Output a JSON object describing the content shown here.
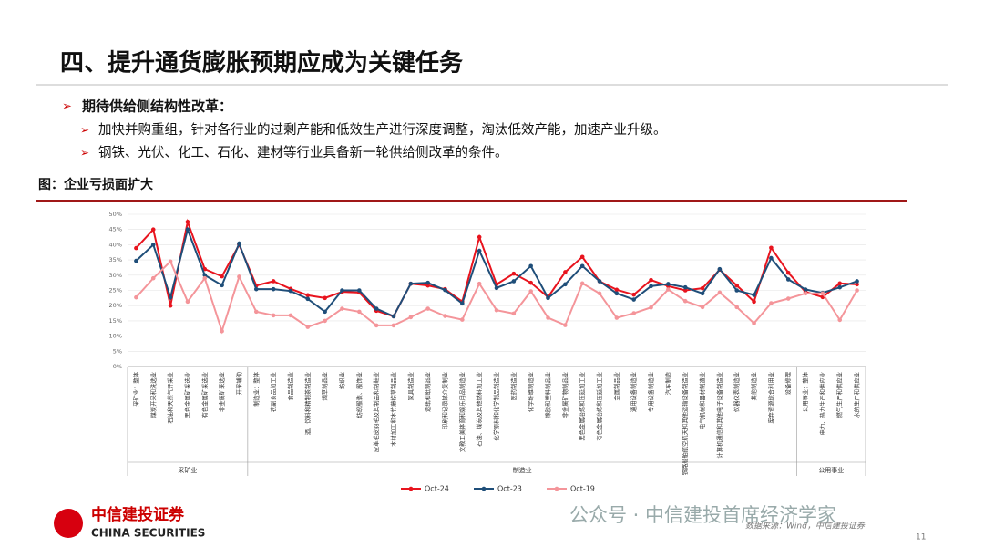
{
  "slide": {
    "title": "四、提升通货膨胀预期应成为关键任务",
    "bullet": "期待供给侧结构性改革：",
    "sub_bullets": [
      "加快并购重组，针对各行业的过剩产能和低效生产进行深度调整，淘汰低效产能，加速产业升级。",
      "钢铁、光伏、化工、石化、建材等行业具备新一轮供给侧改革的条件。"
    ],
    "figure_caption": "图：企业亏损面扩大",
    "source": "数据来源：Wind，中信建投证券",
    "page_number": "11",
    "logo_cn": "中信建投证券",
    "logo_en": "CHINA SECURITIES",
    "watermark": "公众号 · 中信建投首席经济学家"
  },
  "chart_data": {
    "type": "line",
    "categories": [
      "采矿业：整体",
      "煤炭开采和洗选业",
      "石油和天然气开采业",
      "黑色金属矿采选业",
      "有色金属矿采选业",
      "非金属矿采选业",
      "开采辅助",
      "制造业：整体",
      "农副食品加工业",
      "食品制造业",
      "酒、饮料和精制茶制造业",
      "烟草制品业",
      "纺织业",
      "纺织服装、服饰业",
      "皮革毛皮羽毛及其制品和制鞋业",
      "木材加工和木竹藤棕草制品业",
      "家具制造业",
      "造纸和纸制品业",
      "印刷和记录媒介复制业",
      "文教工美体育和娱乐用品制造业",
      "石油、煤炭及其他燃料加工业",
      "化学原料和化学制品制造业",
      "医药制造业",
      "化学纤维制造业",
      "橡胶和塑料制品业",
      "非金属矿物制品业",
      "黑色金属冶炼和压延加工业",
      "有色金属冶炼和压延加工业",
      "金属制品业",
      "通用设备制造业",
      "专用设备制造业",
      "汽车制造",
      "铁路船舶航空航天和其他运输设备制造业",
      "电气机械和器材制造业",
      "计算机通信和其他电子设备制造业",
      "仪器仪表制造业",
      "其他制造业",
      "废弃资源综合利用业",
      "设备修理",
      "公用事业：整体",
      "电力、热力生产和供应业",
      "燃气生产和供应业",
      "水的生产和供应业"
    ],
    "groups": [
      {
        "name": "采矿业",
        "size": 7
      },
      {
        "name": "制造业",
        "size": 32
      },
      {
        "name": "公用事业",
        "size": 4
      }
    ],
    "series": [
      {
        "name": "Oct-24",
        "color": "#e8141e",
        "values": [
          38.9,
          45,
          20,
          47.5,
          32,
          29.6,
          40,
          26.6,
          28,
          25.5,
          23.4,
          22.5,
          24.5,
          24.3,
          18.3,
          16.5,
          27.2,
          26.6,
          25.4,
          21.3,
          42.5,
          27,
          30.5,
          27.5,
          22.8,
          31,
          36,
          28,
          25.2,
          23.6,
          28.4,
          26.4,
          25,
          25.7,
          31.8,
          26.6,
          21.3,
          39,
          30.8,
          24.5,
          22.8,
          27.3,
          27
        ]
      },
      {
        "name": "Oct-23",
        "color": "#1f4e79",
        "values": [
          34.7,
          40,
          22.7,
          45,
          30,
          26.7,
          40.4,
          25.4,
          25.4,
          24.8,
          22.2,
          18,
          25,
          25,
          19,
          16.5,
          27.2,
          27.5,
          25.1,
          20.7,
          38,
          25.8,
          28,
          33,
          22.5,
          27,
          33,
          28,
          24,
          22,
          26.4,
          27.1,
          26,
          24,
          32,
          25,
          23.5,
          35.6,
          28.6,
          25.3,
          24.2,
          26,
          28
        ]
      },
      {
        "name": "Oct-19",
        "color": "#f4959a",
        "values": [
          22.7,
          29,
          34.5,
          21.3,
          29,
          11.6,
          29.5,
          18,
          16.8,
          16.8,
          13,
          15,
          19,
          18,
          13.5,
          13.5,
          16.2,
          19,
          16.6,
          15.4,
          27.2,
          18.5,
          17.4,
          24.7,
          16,
          13.6,
          27.3,
          24,
          16,
          17.5,
          19.4,
          25.3,
          21.5,
          19.5,
          24.3,
          19.5,
          14.2,
          20.8,
          22.3,
          24,
          24,
          15.3,
          25
        ]
      }
    ],
    "ylim": [
      0,
      50
    ],
    "yticks": [
      {
        "value": 0,
        "label": "0%"
      },
      {
        "value": 5,
        "label": "5%"
      },
      {
        "value": 10,
        "label": "10%"
      },
      {
        "value": 15,
        "label": "15%"
      },
      {
        "value": 20,
        "label": "20%"
      },
      {
        "value": 25,
        "label": "25%"
      },
      {
        "value": 30,
        "label": "30%"
      },
      {
        "value": 35,
        "label": "35%"
      },
      {
        "value": 40,
        "label": "40%"
      },
      {
        "value": 45,
        "label": "45%"
      },
      {
        "value": 50,
        "label": "50%"
      }
    ],
    "grid": true
  }
}
